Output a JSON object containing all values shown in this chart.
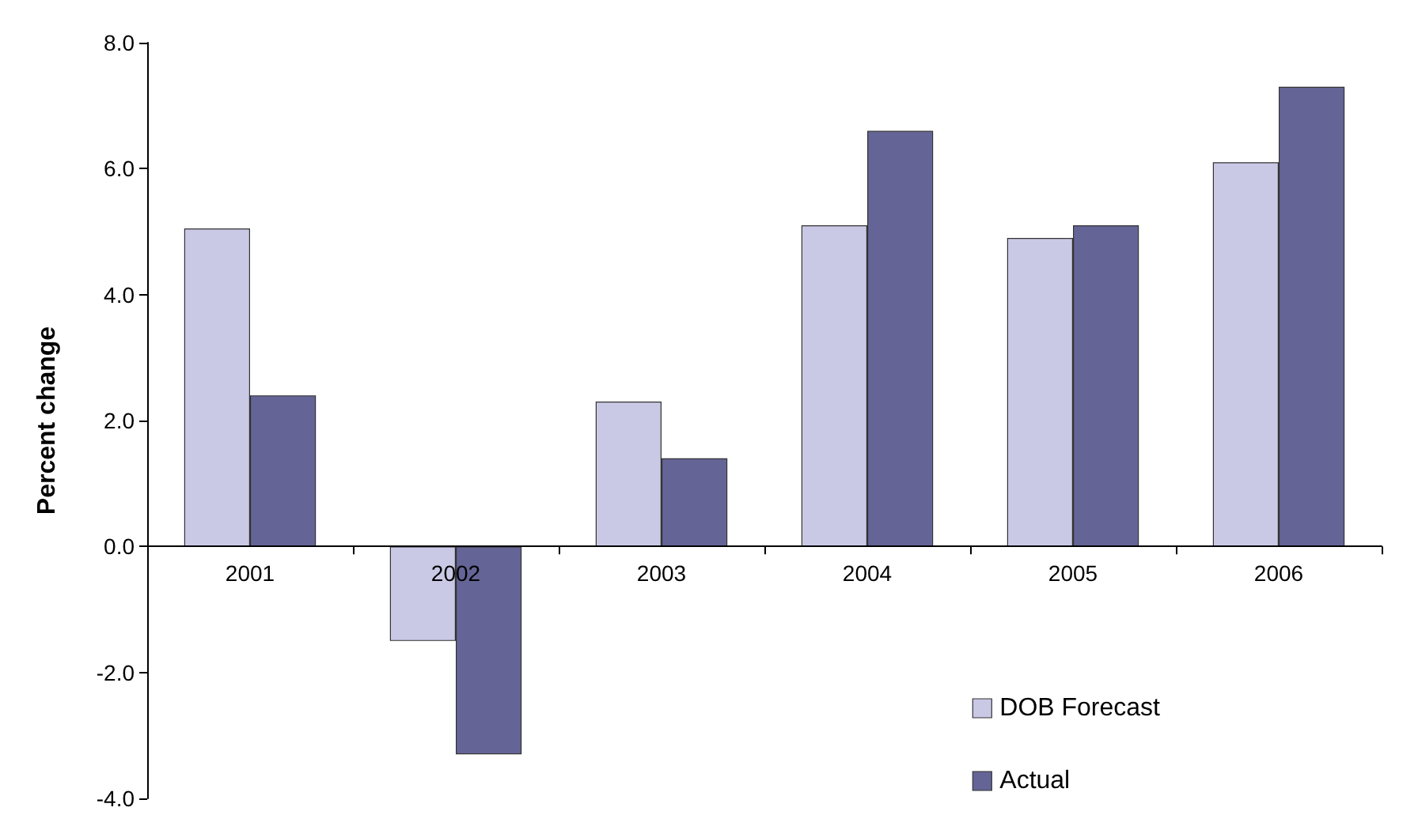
{
  "chart_data": {
    "type": "bar",
    "ylabel": "Percent change",
    "categories": [
      "2001",
      "2002",
      "2003",
      "2004",
      "2005",
      "2006"
    ],
    "series": [
      {
        "name": "DOB Forecast",
        "color": "#c9c9e6",
        "values": [
          5.05,
          -1.5,
          2.3,
          5.1,
          4.9,
          6.1
        ]
      },
      {
        "name": "Actual",
        "color": "#646496",
        "values": [
          2.4,
          -3.3,
          1.4,
          6.6,
          5.1,
          7.3
        ]
      }
    ],
    "ylim": [
      -4,
      8
    ],
    "yticks": [
      {
        "value": -4,
        "label": "-4.0"
      },
      {
        "value": -2,
        "label": "-2.0"
      },
      {
        "value": 0,
        "label": "0.0"
      },
      {
        "value": 2,
        "label": "2.0"
      },
      {
        "value": 4,
        "label": "4.0"
      },
      {
        "value": 6,
        "label": "6.0"
      },
      {
        "value": 8,
        "label": "8.0"
      }
    ],
    "legend": "bottom right"
  }
}
